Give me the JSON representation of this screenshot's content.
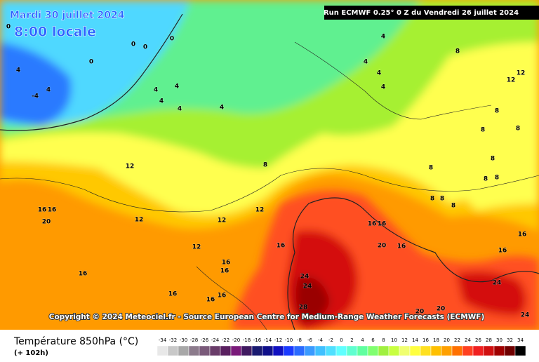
{
  "header": {
    "date": "Mardi 30 juillet 2024",
    "time": "8:00 locale",
    "run": "Run ECMWF 0.25° 0 Z du Vendredi 26 juillet 2024"
  },
  "copyright": "Copyright © 2024 Meteociel.fr - Source European Centre for Medium-Range Weather Forecasts (ECMWF)",
  "legend": {
    "title": "Température 850hPa (°C)",
    "lead": "(+ 102h)",
    "values": [
      -34,
      -32,
      -30,
      -28,
      -26,
      -24,
      -22,
      -20,
      -18,
      -16,
      -14,
      -12,
      -10,
      -8,
      -6,
      -4,
      -2,
      0,
      2,
      4,
      6,
      8,
      10,
      12,
      14,
      16,
      18,
      20,
      22,
      24,
      26,
      28,
      30,
      32,
      34
    ],
    "colors": [
      "#e8e8e8",
      "#c8c8c8",
      "#a8a8a8",
      "#8c7b8c",
      "#7a5a7a",
      "#6a3d6a",
      "#5a2060",
      "#7a1a7a",
      "#401a60",
      "#1a1a70",
      "#10108a",
      "#1010c0",
      "#1a3aff",
      "#2a6aff",
      "#3a9aff",
      "#40c0ff",
      "#50e0ff",
      "#60ffff",
      "#60ffd0",
      "#60ffa0",
      "#80ff70",
      "#a0f040",
      "#c8ff40",
      "#f0ff70",
      "#ffff40",
      "#ffe020",
      "#ffc000",
      "#ffa000",
      "#ff7000",
      "#ff4020",
      "#f02020",
      "#d01010",
      "#a00000",
      "#700000",
      "#000000"
    ]
  },
  "map": {
    "contour_labels": [
      0,
      0,
      0,
      0,
      0,
      4,
      -4,
      4,
      4,
      4,
      4,
      4,
      4,
      4,
      4,
      4,
      4,
      8,
      12,
      12,
      8,
      8,
      8,
      8,
      8,
      8,
      8,
      8,
      8,
      8,
      8,
      12,
      12,
      12,
      12,
      12,
      16,
      16,
      20,
      16,
      16,
      16,
      16,
      16,
      16,
      16,
      16,
      16,
      20,
      16,
      16,
      16,
      24,
      24,
      28,
      20,
      20,
      24,
      24
    ]
  }
}
